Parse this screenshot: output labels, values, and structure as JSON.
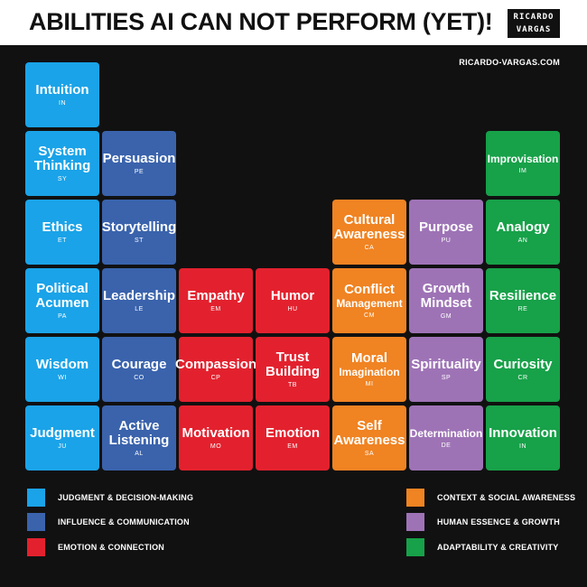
{
  "header": {
    "title_pre": "ABILITIES ",
    "title_ai": "AI",
    "title_post": " CAN NOT PERFORM (YET)!"
  },
  "logo": {
    "line1": "RICARDO",
    "line2": "VARGAS"
  },
  "site": "RICARDO-VARGAS.COM",
  "colors": {
    "judgment": "#1aa3e8",
    "influence": "#3a63ac",
    "emotion": "#e3212e",
    "context": "#f08322",
    "human": "#9e73b6",
    "adaptability": "#17a149"
  },
  "tiles": {
    "intuition": {
      "name": "Intuition",
      "abbr": "IN"
    },
    "system_thinking": {
      "name": "System\nThinking",
      "abbr": "SY"
    },
    "ethics": {
      "name": "Ethics",
      "abbr": "ET"
    },
    "political_acumen": {
      "name": "Political\nAcumen",
      "abbr": "PA"
    },
    "wisdom": {
      "name": "Wisdom",
      "abbr": "WI"
    },
    "judgment": {
      "name": "Judgment",
      "abbr": "JU"
    },
    "persuasion": {
      "name": "Persuasion",
      "abbr": "PE"
    },
    "storytelling": {
      "name": "Storytelling",
      "abbr": "ST"
    },
    "leadership": {
      "name": "Leadership",
      "abbr": "LE"
    },
    "courage": {
      "name": "Courage",
      "abbr": "CO"
    },
    "active_listening": {
      "name": "Active\nListening",
      "abbr": "AL"
    },
    "empathy": {
      "name": "Empathy",
      "abbr": "EM"
    },
    "compassion": {
      "name": "Compassion",
      "abbr": "CP"
    },
    "motivation": {
      "name": "Motivation",
      "abbr": "MO"
    },
    "humor": {
      "name": "Humor",
      "abbr": "HU"
    },
    "trust_building": {
      "name": "Trust\nBuilding",
      "abbr": "TB"
    },
    "emotion": {
      "name": "Emotion",
      "abbr": "EM"
    },
    "cultural_awareness": {
      "name": "Cultural\nAwareness",
      "abbr": "CA"
    },
    "conflict_management": {
      "name": "Conflict",
      "name2": "Management",
      "abbr": "CM"
    },
    "moral_imagination": {
      "name": "Moral",
      "name2": "Imagination",
      "abbr": "MI"
    },
    "self_awareness": {
      "name": "Self\nAwareness",
      "abbr": "SA"
    },
    "purpose": {
      "name": "Purpose",
      "abbr": "PU"
    },
    "growth_mindset": {
      "name": "Growth\nMindset",
      "abbr": "GM"
    },
    "spirituality": {
      "name": "Spirituality",
      "abbr": "SP"
    },
    "determination": {
      "name": "Determination",
      "abbr": "DE"
    },
    "improvisation": {
      "name": "Improvisation",
      "abbr": "IM"
    },
    "analogy": {
      "name": "Analogy",
      "abbr": "AN"
    },
    "resilience": {
      "name": "Resilience",
      "abbr": "RE"
    },
    "curiosity": {
      "name": "Curiosity",
      "abbr": "CR"
    },
    "innovation": {
      "name": "Innovation",
      "abbr": "IN"
    }
  },
  "legend": {
    "judgment": "JUDGMENT & DECISION-MAKING",
    "influence": "INFLUENCE & COMMUNICATION",
    "emotion": "EMOTION & CONNECTION",
    "context": "CONTEXT & SOCIAL AWARENESS",
    "human": "HUMAN ESSENCE & GROWTH",
    "adaptability": "ADAPTABILITY & CREATIVITY"
  }
}
